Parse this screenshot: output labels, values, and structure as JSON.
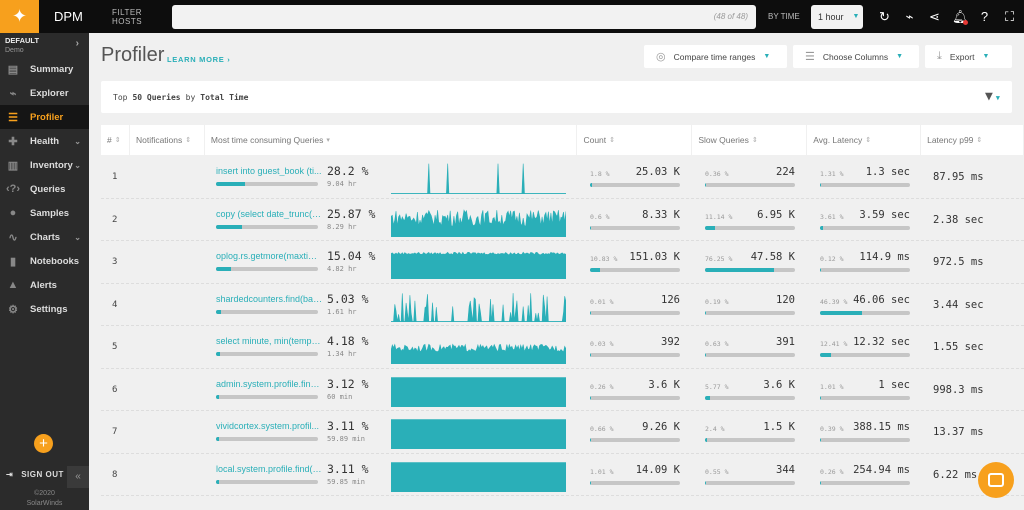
{
  "topbar": {
    "app": "DPM",
    "filter_label": "FILTER HOSTS",
    "filter_value": "",
    "host_count": "(48 of 48)",
    "by_time_label": "BY TIME",
    "time_value": "1 hour"
  },
  "sidebar": {
    "org": "DEFAULT",
    "env": "Demo",
    "items": [
      {
        "label": "Summary",
        "icon": "summary-icon"
      },
      {
        "label": "Explorer",
        "icon": "pulse-icon"
      },
      {
        "label": "Profiler",
        "icon": "profiler-icon",
        "active": true
      },
      {
        "label": "Health",
        "icon": "medkit-icon",
        "chevron": true
      },
      {
        "label": "Inventory",
        "icon": "server-icon",
        "chevron": true
      },
      {
        "label": "Queries",
        "icon": "code-icon"
      },
      {
        "label": "Samples",
        "icon": "bubbles-icon"
      },
      {
        "label": "Charts",
        "icon": "chart-icon",
        "chevron": true
      },
      {
        "label": "Notebooks",
        "icon": "notebook-icon"
      },
      {
        "label": "Alerts",
        "icon": "alert-icon"
      },
      {
        "label": "Settings",
        "icon": "gear-icon"
      }
    ],
    "sign_out": "SIGN OUT",
    "copyright": "©2020",
    "company": "SolarWinds"
  },
  "page": {
    "title": "Profiler",
    "learn_more": "LEARN MORE ›",
    "compare": "Compare time ranges",
    "columns": "Choose Columns",
    "export": "Export",
    "filter_prefix": "Top",
    "filter_n": "50 Queries",
    "filter_by": "by",
    "filter_metric": "Total Time"
  },
  "table": {
    "headers": [
      "#",
      "Notifications",
      "Most time consuming Queries",
      "Count",
      "Slow Queries",
      "Avg. Latency",
      "Latency p99"
    ],
    "rows": [
      {
        "n": "1",
        "query": "insert into guest_book (ti...",
        "pct": "28.2 %",
        "time": "9.04 hr",
        "share": 28.2,
        "count_pct": "1.8 %",
        "count": "25.03 K",
        "slow_pct": "0.36 %",
        "slow": "224",
        "avg_pct": "1.31 %",
        "avg": "1.3 sec",
        "p99": "87.95 ms"
      },
      {
        "n": "2",
        "query": "copy (select date_trunc(?:...",
        "pct": "25.87 %",
        "time": "8.29 hr",
        "share": 25.87,
        "count_pct": "0.6 %",
        "count": "8.33 K",
        "slow_pct": "11.14 %",
        "slow": "6.95 K",
        "avg_pct": "3.61 %",
        "avg": "3.59 sec",
        "p99": "2.38 sec"
      },
      {
        "n": "3",
        "query": "oplog.rs.getmore(maxtim...",
        "pct": "15.04 %",
        "time": "4.82 hr",
        "share": 15.04,
        "count_pct": "10.83 %",
        "count": "151.03 K",
        "slow_pct": "76.25 %",
        "slow": "47.58 K",
        "avg_pct": "0.12 %",
        "avg": "114.9 ms",
        "p99": "972.5 ms"
      },
      {
        "n": "4",
        "query": "shardedcounters.find(bat...",
        "pct": "5.03 %",
        "time": "1.61 hr",
        "share": 5.03,
        "count_pct": "0.01 %",
        "count": "126",
        "slow_pct": "0.19 %",
        "slow": "120",
        "avg_pct": "46.39 %",
        "avg": "46.06 sec",
        "p99": "3.44 sec"
      },
      {
        "n": "5",
        "query": "select minute, min(tempe...",
        "pct": "4.18 %",
        "time": "1.34 hr",
        "share": 4.18,
        "count_pct": "0.03 %",
        "count": "392",
        "slow_pct": "0.63 %",
        "slow": "391",
        "avg_pct": "12.41 %",
        "avg": "12.32 sec",
        "p99": "1.55 sec"
      },
      {
        "n": "6",
        "query": "admin.system.profile.find...",
        "pct": "3.12 %",
        "time": "60 min",
        "share": 3.12,
        "count_pct": "0.26 %",
        "count": "3.6 K",
        "slow_pct": "5.77 %",
        "slow": "3.6 K",
        "avg_pct": "1.01 %",
        "avg": "1 sec",
        "p99": "998.3 ms"
      },
      {
        "n": "7",
        "query": "vividcortex.system.profil...",
        "pct": "3.11 %",
        "time": "59.89 min",
        "share": 3.11,
        "count_pct": "0.66 %",
        "count": "9.26 K",
        "slow_pct": "2.4 %",
        "slow": "1.5 K",
        "avg_pct": "0.39 %",
        "avg": "388.15 ms",
        "p99": "13.37 ms"
      },
      {
        "n": "8",
        "query": "local.system.profile.find(o...",
        "pct": "3.11 %",
        "time": "59.85 min",
        "share": 3.11,
        "count_pct": "1.01 %",
        "count": "14.09 K",
        "slow_pct": "0.55 %",
        "slow": "344",
        "avg_pct": "0.26 %",
        "avg": "254.94 ms",
        "p99": "6.22 ms"
      }
    ]
  },
  "colors": {
    "accent": "#2aafb8",
    "brand": "#f7a01d",
    "sidebar": "#2b2b2b"
  }
}
